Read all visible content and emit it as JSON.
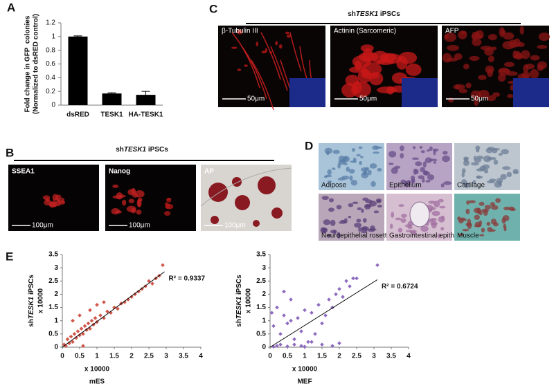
{
  "figure": {
    "panel_labels": [
      "A",
      "B",
      "C",
      "D",
      "E"
    ],
    "panel_b": {
      "title": [
        "sh",
        "TESK1",
        " iPSCs"
      ],
      "images": [
        {
          "label": "SSEA1",
          "scale": "100μm"
        },
        {
          "label": "Nanog",
          "scale": "100μm"
        },
        {
          "label": "AP",
          "scale": "100μm"
        }
      ]
    },
    "panel_c": {
      "title": [
        "sh",
        "TESK1",
        " iPSCs"
      ],
      "images": [
        {
          "label": "β-Tubulin III",
          "scale": "50μm"
        },
        {
          "label": "Actinin (Sarcomeric)",
          "scale": "50μm"
        },
        {
          "label": "AFP",
          "scale": "50μm"
        }
      ]
    },
    "panel_d": {
      "images": [
        "Adipose",
        "Epithelium",
        "Cartilage",
        "Neuroepithelial rosettes",
        "Gastrointestinal epithelium",
        "Muscle"
      ]
    }
  },
  "chart_data": [
    {
      "type": "bar",
      "ylabel": [
        "Fold change in GFP  colonies",
        "(Normalized to dsRED control)"
      ],
      "categories": [
        "dsRED",
        "TESK1",
        "HA-TESK1"
      ],
      "values": [
        1.0,
        0.17,
        0.15
      ],
      "errors": [
        0.01,
        0.01,
        0.05
      ],
      "color": "#000000",
      "ylim": [
        0,
        1.2
      ],
      "yticks": [
        0,
        0.2,
        0.4,
        0.6,
        0.8,
        1,
        1.2
      ]
    },
    {
      "type": "scatter",
      "ylabel": [
        "sh",
        "TESK1",
        " iPSCs"
      ],
      "yunit": "x 10000",
      "xunit": "x 10000",
      "xlabel": "mES",
      "annotation": "R² = 0.9337",
      "color": "#d0574a",
      "x": [
        0.05,
        0.1,
        0.15,
        0.2,
        0.25,
        0.3,
        0.35,
        0.4,
        0.45,
        0.5,
        0.55,
        0.6,
        0.65,
        0.7,
        0.75,
        0.8,
        0.85,
        0.9,
        0.95,
        1.0,
        1.1,
        1.2,
        1.3,
        1.4,
        1.5,
        1.6,
        1.7,
        1.8,
        1.9,
        2.0,
        2.1,
        2.2,
        2.3,
        2.4,
        2.5,
        2.6,
        2.7,
        2.8,
        2.9,
        0.3,
        0.5,
        0.8,
        1.0,
        1.2,
        0.6
      ],
      "y": [
        0.1,
        0.05,
        0.3,
        0.15,
        0.4,
        0.2,
        0.5,
        0.35,
        0.6,
        0.45,
        0.7,
        0.5,
        0.8,
        0.65,
        0.9,
        0.7,
        1.0,
        0.85,
        1.1,
        0.95,
        1.2,
        1.1,
        1.35,
        1.3,
        1.5,
        1.45,
        1.65,
        1.7,
        1.8,
        1.9,
        2.0,
        2.1,
        2.2,
        2.3,
        2.5,
        2.4,
        2.6,
        2.7,
        3.1,
        1.0,
        1.2,
        1.4,
        1.6,
        1.7,
        0.05
      ],
      "trendline": {
        "x": [
          0,
          2.95
        ],
        "y": [
          0,
          2.85
        ]
      },
      "xlim": [
        0,
        4
      ],
      "ylim": [
        0,
        3.5
      ],
      "xticks": [
        0,
        0.5,
        1,
        1.5,
        2,
        2.5,
        3,
        3.5,
        4
      ],
      "yticks": [
        0,
        0.5,
        1,
        1.5,
        2,
        2.5,
        3,
        3.5
      ]
    },
    {
      "type": "scatter",
      "ylabel": [
        "sh",
        "TESK1",
        " iPSCs"
      ],
      "yunit": "x 10000",
      "xunit": "x 10000",
      "xlabel": "MEF",
      "annotation": "R² = 0.6724",
      "color": "#8e6bbf",
      "x": [
        0.05,
        0.1,
        0.2,
        0.3,
        0.4,
        0.5,
        0.6,
        0.7,
        0.8,
        0.9,
        1.0,
        1.1,
        1.2,
        1.3,
        1.4,
        1.5,
        1.6,
        1.7,
        1.8,
        1.9,
        2.0,
        2.1,
        2.2,
        2.3,
        2.4,
        2.5,
        3.1,
        0.1,
        0.2,
        0.3,
        0.5,
        0.7,
        0.9,
        1.0,
        1.2,
        1.5,
        1.8,
        2.0,
        0.4,
        0.6
      ],
      "y": [
        1.3,
        0.8,
        1.5,
        0.5,
        1.2,
        0.9,
        1.0,
        0.3,
        1.1,
        0.6,
        1.4,
        0.2,
        1.3,
        0.5,
        1.6,
        0.9,
        1.2,
        1.8,
        1.5,
        2.0,
        2.2,
        1.9,
        2.5,
        2.3,
        2.6,
        2.6,
        3.1,
        0.02,
        0.05,
        0.1,
        0.03,
        0.1,
        0.05,
        0.02,
        0.2,
        0.1,
        0.05,
        0.15,
        2.1,
        1.8
      ],
      "trendline": {
        "x": [
          0,
          3.1
        ],
        "y": [
          0,
          2.55
        ]
      },
      "xlim": [
        0,
        4
      ],
      "ylim": [
        0,
        3.5
      ],
      "xticks": [
        0,
        0.5,
        1,
        1.5,
        2,
        2.5,
        3,
        3.5,
        4
      ],
      "yticks": [
        0,
        0.5,
        1,
        1.5,
        2,
        2.5,
        3,
        3.5
      ]
    }
  ]
}
